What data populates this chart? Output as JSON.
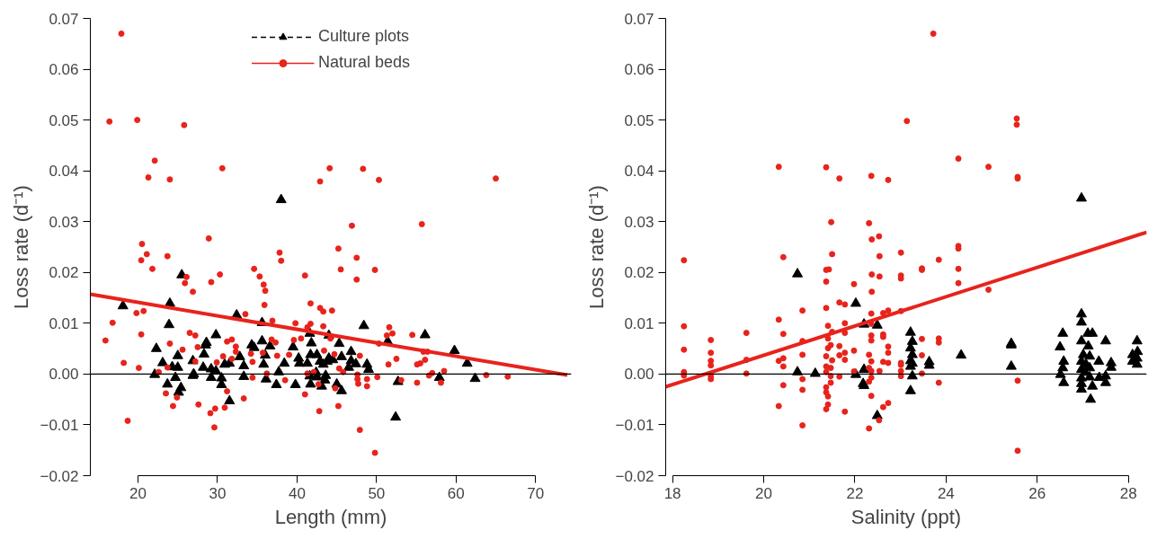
{
  "chart_data": [
    {
      "type": "scatter",
      "xlabel": "Length (mm)",
      "ylabel": "Loss rate (d⁻¹)",
      "xlim": [
        14,
        74.5
      ],
      "ylim": [
        -0.02,
        0.07
      ],
      "xticks": [
        20,
        30,
        40,
        50,
        60,
        70
      ],
      "yticks": [
        {
          "value": -0.02,
          "label": "−0.02"
        },
        {
          "value": -0.01,
          "label": "−0.01"
        },
        {
          "value": 0,
          "label": "0.00"
        },
        {
          "value": 0.01,
          "label": "0.01"
        },
        {
          "value": 0.02,
          "label": "0.02"
        },
        {
          "value": 0.03,
          "label": "0.03"
        },
        {
          "value": 0.04,
          "label": "0.04"
        },
        {
          "value": 0.05,
          "label": "0.05"
        },
        {
          "value": 0.06,
          "label": "0.06"
        },
        {
          "value": 0.07,
          "label": "0.07"
        }
      ],
      "grid": false,
      "legend": "top",
      "ref_lines": [
        {
          "axis": "y",
          "value": 0,
          "color": "#000000",
          "line_style": "solid"
        }
      ],
      "series": [
        {
          "name": "Culture plots",
          "marker": "triangle",
          "line_style": "dashed",
          "color": "#000000",
          "x": [
            38.0,
            25.5,
            18.1,
            24.0,
            23.9,
            32.4,
            35.6,
            48.4,
            22.3,
            23.1,
            25.0,
            24.3,
            25.0,
            24.7,
            22.1,
            23.7,
            25.4,
            25.1,
            26.9,
            27.0,
            26.9,
            28.2,
            28.3,
            28.6,
            28.5,
            29.8,
            29.2,
            29.2,
            29.8,
            30.5,
            30.5,
            30.9,
            31.5,
            31.5,
            32.8,
            33.3,
            33.3,
            34.3,
            34.6,
            35.6,
            36.6,
            36.0,
            35.8,
            36.1,
            37.7,
            37.4,
            38.4,
            39.5,
            39.8,
            40.2,
            40.3,
            41.3,
            41.6,
            41.8,
            41.7,
            42.5,
            41.6,
            41.7,
            42.5,
            42.4,
            43.1,
            43.5,
            43.6,
            42.9,
            43.3,
            43.8,
            44.0,
            44.5,
            44.0,
            45.3,
            45.6,
            45.0,
            45.6,
            46.8,
            46.8,
            46.5,
            47.4,
            48.8,
            49.0,
            51.4,
            52.4,
            52.7,
            56.1,
            57.9,
            59.8,
            61.4,
            62.4
          ],
          "values": [
            0.0343,
            0.0195,
            0.0134,
            0.0139,
            0.0097,
            0.0116,
            0.0101,
            0.0095,
            0.005,
            0.0022,
            0.0036,
            0.0014,
            0.0013,
            -0.0007,
            -0.0001,
            -0.002,
            -0.0027,
            -0.0036,
            0.0026,
            0.0,
            -0.0003,
            0.0013,
            0.0039,
            0.0062,
            0.0057,
            0.0077,
            0.001,
            -0.0007,
            0.0006,
            -0.0021,
            -0.0008,
            0.0019,
            0.0021,
            -0.0053,
            0.0034,
            0.0016,
            -0.0005,
            0.0057,
            0.0052,
            0.0065,
            0.0055,
            0.0037,
            0.0019,
            -0.001,
            0.0004,
            -0.0021,
            0.0021,
            0.0053,
            -0.0021,
            0.0031,
            0.0021,
            0.0021,
            0.008,
            0.0061,
            0.0038,
            0.0038,
            -0.0004,
            -0.002,
            -0.0006,
            0.0003,
            -0.0024,
            -0.0012,
            -0.0003,
            0.0025,
            0.0019,
            0.0025,
            0.0031,
            0.0028,
            0.0076,
            0.006,
            0.0034,
            -0.002,
            -0.0033,
            0.0044,
            0.0026,
            0.0013,
            0.002,
            0.0019,
            0.0009,
            0.0064,
            -0.0085,
            -0.0015,
            0.0077,
            -0.0007,
            0.0046,
            0.0021,
            -0.0009
          ]
        },
        {
          "name": "Natural beds",
          "marker": "circle",
          "line_style": "solid",
          "color": "#e8231c",
          "x": [
            17.9,
            16.4,
            19.9,
            25.8,
            22.1,
            30.6,
            21.3,
            24.0,
            44.1,
            48.3,
            42.9,
            50.3,
            65.0,
            46.9,
            55.7,
            20.5,
            28.9,
            37.8,
            45.2,
            21.1,
            20.4,
            23.7,
            21.8,
            26.1,
            25.9,
            26.9,
            29.2,
            30.3,
            38.0,
            34.6,
            35.3,
            35.8,
            36.0,
            35.9,
            41.0,
            47.5,
            45.5,
            47.5,
            49.8,
            41.7,
            42.9,
            43.3,
            44.4,
            19.8,
            20.7,
            16.8,
            15.9,
            20.4,
            18.2,
            20.1,
            18.7,
            24.0,
            25.6,
            23.5,
            24.4,
            24.9,
            23.7,
            22.6,
            26.5,
            27.2,
            27.5,
            27.2,
            27.6,
            29.1,
            29.7,
            29.6,
            30.9,
            31.2,
            33.3,
            31.2,
            31.8,
            32.3,
            32.3,
            30.7,
            31.8,
            29.9,
            33.5,
            34.2,
            34.4,
            34.4,
            36.9,
            36.8,
            37.3,
            35.7,
            37.5,
            36.2,
            38.5,
            39.0,
            39.8,
            39.6,
            40.5,
            41.3,
            41.7,
            43.3,
            44.2,
            41.0,
            42.8,
            45.2,
            44.8,
            42.7,
            41.3,
            42.1,
            43.4,
            44.7,
            45.3,
            45.8,
            47.9,
            47.6,
            47.6,
            47.7,
            48.8,
            48.8,
            47.9,
            49.8,
            50.1,
            50.3,
            51.3,
            51.6,
            52.0,
            52.5,
            51.5,
            53.1,
            54.5,
            55.1,
            55.5,
            56.1,
            55.9,
            56.4,
            55.1,
            56.6,
            57.0,
            58.1,
            58.5,
            63.8,
            66.5
          ],
          "values": [
            0.067,
            0.0497,
            0.05,
            0.049,
            0.042,
            0.0405,
            0.0387,
            0.0383,
            0.0405,
            0.0404,
            0.0379,
            0.0382,
            0.0385,
            0.0292,
            0.0295,
            0.0256,
            0.0267,
            0.0239,
            0.0247,
            0.0236,
            0.0224,
            0.0232,
            0.0207,
            0.0191,
            0.0179,
            0.0162,
            0.0181,
            0.0196,
            0.0223,
            0.0207,
            0.0192,
            0.0176,
            0.0164,
            0.0136,
            0.0194,
            0.0229,
            0.0206,
            0.0186,
            0.0205,
            0.0139,
            0.013,
            0.0123,
            0.0125,
            0.012,
            0.0124,
            0.0101,
            0.0066,
            0.0078,
            0.0022,
            0.0012,
            -0.0092,
            0.006,
            0.0048,
            -0.0038,
            -0.0063,
            -0.0046,
            0.0013,
            0.0004,
            0.0081,
            0.0076,
            0.0053,
            0.0025,
            -0.006,
            -0.0077,
            -0.0068,
            -0.0105,
            -0.0066,
            -0.0034,
            -0.0048,
            0.0064,
            0.0068,
            0.0054,
            0.0044,
            0.0035,
            0.003,
            0.0023,
            0.0118,
            0.004,
            0.0024,
            -0.0007,
            0.0105,
            0.0068,
            0.0062,
            0.0042,
            0.0036,
            0.0001,
            -0.0012,
            0.0038,
            0.01,
            0.0067,
            0.007,
            0.0092,
            0.0099,
            0.0094,
            0.007,
            -0.004,
            -0.0073,
            -0.0063,
            -0.0028,
            -0.002,
            0.0001,
            0.0004,
            0.0046,
            0.0039,
            0.0011,
            0.0004,
            0.0036,
            -0.0001,
            -0.001,
            -0.0019,
            -0.001,
            -0.0024,
            -0.011,
            -0.0155,
            -0.0006,
            0.006,
            0.0076,
            0.0092,
            0.008,
            0.003,
            0.0019,
            -0.0012,
            0.0077,
            0.0019,
            0.0021,
            0.0028,
            0.0044,
            0.0044,
            -0.0017,
            -0.0003,
            0.0002,
            -0.0017,
            0.0006,
            -0.0002,
            -0.0005
          ]
        },
        {
          "type": "line",
          "color": "#e8231c",
          "line_style": "solid",
          "x": [
            14,
            74
          ],
          "values": [
            0.0157,
            -0.0002
          ]
        }
      ]
    },
    {
      "type": "scatter",
      "xlabel": "Salinity (ppt)",
      "ylabel": "Loss rate (d⁻¹)",
      "xlim": [
        17.85,
        28.4
      ],
      "ylim": [
        -0.02,
        0.07
      ],
      "xticks": [
        18,
        20,
        22,
        24,
        26,
        28
      ],
      "yticks": [
        {
          "value": -0.02,
          "label": "−0.02"
        },
        {
          "value": -0.01,
          "label": "−0.01"
        },
        {
          "value": 0,
          "label": "0.00"
        },
        {
          "value": 0.01,
          "label": "0.01"
        },
        {
          "value": 0.02,
          "label": "0.02"
        },
        {
          "value": 0.03,
          "label": "0.03"
        },
        {
          "value": 0.04,
          "label": "0.04"
        },
        {
          "value": 0.05,
          "label": "0.05"
        },
        {
          "value": 0.06,
          "label": "0.06"
        },
        {
          "value": 0.07,
          "label": "0.07"
        }
      ],
      "grid": false,
      "ref_lines": [
        {
          "axis": "y",
          "value": 0,
          "color": "#000000",
          "line_style": "solid"
        }
      ],
      "series": [
        {
          "marker": "triangle",
          "color": "#000000",
          "x": [
            26.97,
            20.74,
            22.02,
            22.2,
            22.49,
            20.74,
            21.13,
            22.02,
            22.2,
            22.18,
            22.2,
            22.49,
            23.22,
            23.26,
            23.22,
            23.26,
            23.22,
            23.26,
            23.22,
            23.26,
            23.22,
            23.63,
            23.63,
            24.33,
            25.43,
            25.43,
            25.43,
            26.56,
            26.5,
            26.58,
            26.56,
            26.51,
            26.58,
            26.97,
            26.97,
            27.11,
            27.21,
            26.97,
            27.12,
            27.01,
            27.15,
            26.97,
            27.07,
            27.15,
            26.97,
            27.05,
            26.97,
            27.15,
            26.97,
            27.21,
            26.97,
            27.17,
            27.35,
            27.36,
            27.5,
            27.5,
            27.5,
            27.62,
            27.62,
            28.19,
            28.2,
            28.09,
            28.19,
            28.09,
            28.19
          ],
          "values": [
            0.0346,
            0.0197,
            0.0139,
            0.0098,
            0.0096,
            0.0004,
            0.0001,
            -0.0001,
            0.0009,
            -0.0019,
            -0.0023,
            -0.0082,
            0.0082,
            0.0064,
            0.0051,
            0.0038,
            0.0026,
            0.0021,
            0.0015,
            -0.0004,
            -0.0033,
            0.0024,
            0.0017,
            0.0037,
            0.006,
            0.0057,
            0.0015,
            0.008,
            0.0053,
            0.0025,
            0.0012,
            -0.0001,
            -0.0017,
            0.0118,
            0.0102,
            0.008,
            0.008,
            0.0065,
            0.0055,
            0.0038,
            0.0035,
            0.0025,
            0.0019,
            0.0012,
            0.0009,
            0.0003,
            -0.0008,
            -0.0006,
            -0.0019,
            -0.0024,
            -0.003,
            -0.005,
            0.0025,
            -0.0007,
            0.0065,
            -0.0004,
            -0.0017,
            0.0022,
            0.0013,
            0.0065,
            0.0044,
            0.0038,
            0.0031,
            0.0025,
            0.0019
          ]
        },
        {
          "marker": "circle",
          "color": "#e8231c",
          "x": [
            23.72,
            23.14,
            25.55,
            25.55,
            20.33,
            21.37,
            21.66,
            22.36,
            22.73,
            24.27,
            24.93,
            25.57,
            25.57,
            21.48,
            22.31,
            22.37,
            22.53,
            24.27,
            18.25,
            18.25,
            18.25,
            18.25,
            18.25,
            18.84,
            18.84,
            18.84,
            18.84,
            18.84,
            18.84,
            19.62,
            19.62,
            19.62,
            20.43,
            20.33,
            20.43,
            20.43,
            20.43,
            20.33,
            20.43,
            20.33,
            20.85,
            20.85,
            20.85,
            20.85,
            20.85,
            20.85,
            21.5,
            21.37,
            21.43,
            21.37,
            21.37,
            21.41,
            21.5,
            21.41,
            21.41,
            21.47,
            21.37,
            21.5,
            21.37,
            21.47,
            21.37,
            21.47,
            21.47,
            21.37,
            21.37,
            21.41,
            21.41,
            21.37,
            21.66,
            21.78,
            21.66,
            21.66,
            21.66,
            21.78,
            21.78,
            21.78,
            21.78,
            21.78,
            21.98,
            21.98,
            21.98,
            22.37,
            22.54,
            22.54,
            22.37,
            22.36,
            22.36,
            22.36,
            22.36,
            22.31,
            22.36,
            22.31,
            22.36,
            22.36,
            22.31,
            22.36,
            22.31,
            22.53,
            22.54,
            22.62,
            22.73,
            22.62,
            22.62,
            22.73,
            22.73,
            22.73,
            22.62,
            22.62,
            22.73,
            23.01,
            23.01,
            23.01,
            23.01,
            23.01,
            23.01,
            23.01,
            23.01,
            23.47,
            23.47,
            23.47,
            23.47,
            23.47,
            23.84,
            23.84,
            23.84,
            23.84,
            24.27,
            24.27,
            24.27,
            24.93,
            25.57,
            25.57
          ],
          "values": [
            0.067,
            0.0498,
            0.0503,
            0.0491,
            0.0408,
            0.0407,
            0.0385,
            0.039,
            0.0382,
            0.0424,
            0.0408,
            0.0388,
            0.0385,
            0.0299,
            0.0297,
            0.0265,
            0.0271,
            0.0252,
            0.0224,
            0.0094,
            0.0048,
            0.0004,
            -0.0003,
            0.0067,
            0.0042,
            0.0026,
            0.0017,
            -0.0004,
            -0.001,
            0.0081,
            0.0028,
            0.0001,
            0.023,
            0.0107,
            0.0079,
            0.0031,
            0.0015,
            0.0026,
            -0.0022,
            -0.0063,
            0.0125,
            0.0065,
            0.0038,
            -0.001,
            -0.0031,
            -0.0101,
            0.0236,
            0.0205,
            0.0206,
            0.0182,
            0.013,
            0.0095,
            0.0083,
            0.007,
            0.0051,
            0.0057,
            0.0035,
            0.0027,
            0.0015,
            0.0012,
            0.0004,
            -0.0004,
            -0.0017,
            -0.0026,
            -0.0036,
            -0.0044,
            -0.006,
            -0.0069,
            0.0141,
            0.0137,
            0.0055,
            0.0037,
            -0.0005,
            0.01,
            0.0081,
            0.0042,
            0.0028,
            -0.0074,
            0.0177,
            0.0046,
            0.0005,
            0.0196,
            0.0232,
            0.0192,
            0.0162,
            0.0119,
            0.0099,
            0.0076,
            0.0066,
            0.0038,
            0.0025,
            0.0012,
            0.0006,
            -0.0007,
            -0.0015,
            -0.0043,
            -0.0107,
            -0.0091,
            0.0006,
            0.012,
            0.0125,
            0.0078,
            0.0073,
            0.0054,
            0.0042,
            0.0022,
            0.0024,
            -0.0065,
            -0.0057,
            0.0239,
            0.0194,
            0.0188,
            0.0124,
            0.0022,
            0.0018,
            0.0006,
            -0.0004,
            0.0208,
            0.0205,
            0.0069,
            0.0037,
            0.0001,
            0.0225,
            0.007,
            0.0062,
            -0.0017,
            0.0247,
            0.0207,
            0.0179,
            0.0166,
            -0.0013,
            -0.0151
          ]
        },
        {
          "type": "line",
          "color": "#e8231c",
          "line_style": "solid",
          "x": [
            17.85,
            28.4
          ],
          "values": [
            -0.0025,
            0.0279
          ]
        }
      ]
    }
  ]
}
